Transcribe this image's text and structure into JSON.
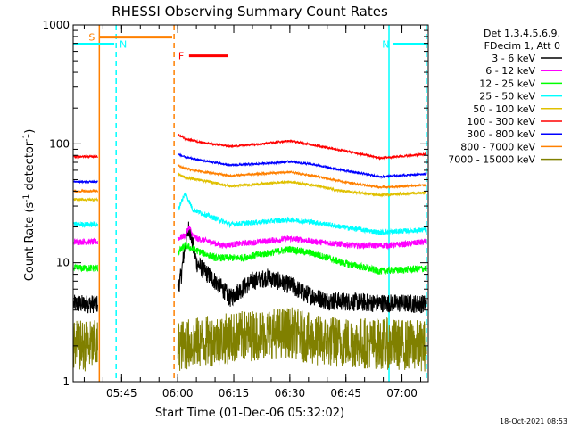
{
  "chart_data": {
    "type": "line",
    "title": "RHESSI Observing Summary Count Rates",
    "xlabel": "Start Time (01-Dec-06 05:32:02)",
    "ylabel_main": "Count Rate (s",
    "ylabel_sup1": "-1",
    "ylabel_mid": " detector",
    "ylabel_sup2": "-1",
    "ylabel_end": ")",
    "yscale": "log",
    "ylim": [
      1,
      1000
    ],
    "xlim_minutes": [
      0,
      95
    ],
    "xticks": [
      {
        "label": "05:45",
        "minutes": 12.97
      },
      {
        "label": "06:00",
        "minutes": 27.97
      },
      {
        "label": "06:15",
        "minutes": 42.97
      },
      {
        "label": "06:30",
        "minutes": 57.97
      },
      {
        "label": "06:45",
        "minutes": 72.97
      },
      {
        "label": "07:00",
        "minutes": 87.97
      }
    ],
    "yticks": [
      {
        "label": "1",
        "value": 1
      },
      {
        "label": "10",
        "value": 10
      },
      {
        "label": "100",
        "value": 100
      },
      {
        "label": "1000",
        "value": 1000
      }
    ],
    "legend_header": [
      "Det 1,3,4,5,6,9,",
      "FDecim 1, Att 0"
    ],
    "legend_placement": "right",
    "series": [
      {
        "name": "3 - 6 keV",
        "color": "#000000",
        "pre": 4.5,
        "profile": [
          [
            28,
            6
          ],
          [
            29,
            8
          ],
          [
            30,
            14
          ],
          [
            31,
            20
          ],
          [
            32,
            14
          ],
          [
            33,
            10
          ],
          [
            35,
            8.5
          ],
          [
            38,
            7
          ],
          [
            40,
            6
          ],
          [
            42,
            5
          ],
          [
            48,
            7
          ],
          [
            52,
            7.5
          ],
          [
            58,
            6.5
          ],
          [
            62,
            5.5
          ],
          [
            68,
            4.8
          ],
          [
            80,
            4.6
          ],
          [
            95,
            4.5
          ]
        ],
        "noise": 0.18
      },
      {
        "name": "6 - 12 keV",
        "color": "#ff00ff",
        "pre": 15,
        "profile": [
          [
            28,
            16
          ],
          [
            30,
            17
          ],
          [
            31,
            20
          ],
          [
            32,
            17
          ],
          [
            33,
            16
          ],
          [
            40,
            14
          ],
          [
            50,
            15
          ],
          [
            58,
            16
          ],
          [
            65,
            15
          ],
          [
            75,
            14
          ],
          [
            85,
            14
          ],
          [
            95,
            15
          ]
        ],
        "noise": 0.06
      },
      {
        "name": "12 - 25 keV",
        "color": "#00ff00",
        "pre": 9,
        "profile": [
          [
            28,
            12
          ],
          [
            30,
            14
          ],
          [
            32,
            13
          ],
          [
            38,
            11
          ],
          [
            45,
            11
          ],
          [
            52,
            12
          ],
          [
            58,
            13
          ],
          [
            64,
            12
          ],
          [
            72,
            10
          ],
          [
            82,
            8.5
          ],
          [
            95,
            9
          ]
        ],
        "noise": 0.07
      },
      {
        "name": "25 - 50 keV",
        "color": "#00ffff",
        "pre": 21,
        "profile": [
          [
            28,
            27
          ],
          [
            29,
            33
          ],
          [
            30,
            38
          ],
          [
            31,
            33
          ],
          [
            32,
            28
          ],
          [
            36,
            25
          ],
          [
            42,
            21
          ],
          [
            50,
            22
          ],
          [
            58,
            23
          ],
          [
            64,
            22
          ],
          [
            72,
            20
          ],
          [
            82,
            18
          ],
          [
            95,
            19
          ]
        ],
        "noise": 0.05
      },
      {
        "name": "50 - 100 keV",
        "color": "#e0c000",
        "pre": 34,
        "profile": [
          [
            28,
            56
          ],
          [
            30,
            52
          ],
          [
            35,
            49
          ],
          [
            42,
            44
          ],
          [
            50,
            46
          ],
          [
            58,
            48
          ],
          [
            64,
            45
          ],
          [
            72,
            40
          ],
          [
            82,
            37
          ],
          [
            95,
            39
          ]
        ],
        "noise": 0.025
      },
      {
        "name": "100 - 300 keV",
        "color": "#ff0000",
        "pre": 78,
        "profile": [
          [
            28,
            120
          ],
          [
            30,
            110
          ],
          [
            35,
            102
          ],
          [
            42,
            95
          ],
          [
            50,
            100
          ],
          [
            58,
            106
          ],
          [
            64,
            98
          ],
          [
            72,
            88
          ],
          [
            82,
            76
          ],
          [
            95,
            82
          ]
        ],
        "noise": 0.02
      },
      {
        "name": "300 - 800 keV",
        "color": "#0000ff",
        "pre": 48,
        "profile": [
          [
            28,
            82
          ],
          [
            30,
            77
          ],
          [
            35,
            72
          ],
          [
            42,
            66
          ],
          [
            50,
            68
          ],
          [
            58,
            71
          ],
          [
            64,
            67
          ],
          [
            72,
            60
          ],
          [
            82,
            53
          ],
          [
            95,
            56
          ]
        ],
        "noise": 0.02
      },
      {
        "name": "800 - 7000 keV",
        "color": "#ff8000",
        "pre": 40,
        "profile": [
          [
            28,
            66
          ],
          [
            30,
            62
          ],
          [
            35,
            58
          ],
          [
            42,
            54
          ],
          [
            50,
            56
          ],
          [
            58,
            58
          ],
          [
            64,
            54
          ],
          [
            72,
            48
          ],
          [
            82,
            43
          ],
          [
            95,
            45
          ]
        ],
        "noise": 0.02
      },
      {
        "name": "7000 - 15000 keV",
        "color": "#808000",
        "pre": 2,
        "profile": [
          [
            28,
            2
          ],
          [
            50,
            2.5
          ],
          [
            58,
            2.6
          ],
          [
            65,
            2.2
          ],
          [
            95,
            2
          ]
        ],
        "noise": 0.5
      }
    ],
    "gap_minutes": [
      7,
      28
    ],
    "annotations": [
      {
        "label": "S",
        "color": "#ff8000",
        "start": 7,
        "end": 26.5,
        "value": 790
      },
      {
        "label": "N",
        "color": "#00ffff",
        "start": 0,
        "end": 11,
        "value": 690
      },
      {
        "label": "N",
        "color": "#00ffff",
        "start": 85.5,
        "end": 95,
        "value": 690
      },
      {
        "label": "F",
        "color": "#ff0000",
        "start": 31,
        "end": 41.5,
        "value": 550
      }
    ],
    "vlines": [
      {
        "minutes": 7,
        "color": "#ff8000",
        "style": "solid"
      },
      {
        "minutes": 27,
        "color": "#ff8000",
        "style": "dashed"
      },
      {
        "minutes": 11.5,
        "color": "#00ffff",
        "style": "dashed"
      },
      {
        "minutes": 84.5,
        "color": "#00ffff",
        "style": "solid"
      },
      {
        "minutes": 94.5,
        "color": "#00ffff",
        "style": "dashed"
      }
    ],
    "grid": false
  },
  "footer": {
    "timestamp": "18-Oct-2021 08:53"
  }
}
